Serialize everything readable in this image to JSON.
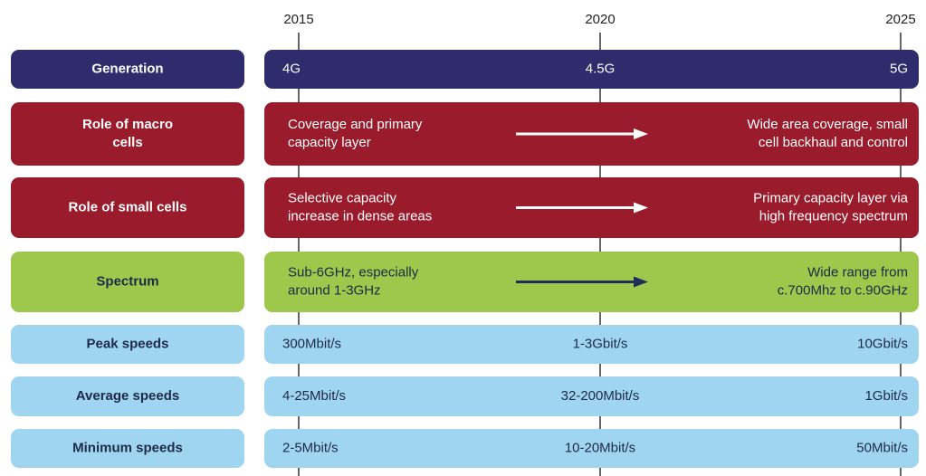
{
  "years": [
    "2015",
    "2020",
    "2025"
  ],
  "rows": [
    {
      "label": [
        "Generation"
      ],
      "cells": [
        "4G",
        "4.5G",
        "5G"
      ]
    },
    {
      "label": [
        "Role of macro",
        "cells"
      ],
      "from": [
        "Coverage and primary",
        "capacity layer"
      ],
      "to": [
        "Wide area coverage, small",
        "cell backhaul and control"
      ]
    },
    {
      "label": [
        "Role of small cells"
      ],
      "from": [
        "Selective capacity",
        "increase in dense areas"
      ],
      "to": [
        "Primary capacity layer via",
        "high frequency spectrum"
      ]
    },
    {
      "label": [
        "Spectrum"
      ],
      "from": [
        "Sub-6GHz, especially",
        "around 1-3GHz"
      ],
      "to": [
        "Wide range from",
        "c.700Mhz to c.90GHz"
      ]
    },
    {
      "label": [
        "Peak speeds"
      ],
      "cells": [
        "300Mbit/s",
        "1-3Gbit/s",
        "10Gbit/s"
      ]
    },
    {
      "label": [
        "Average speeds"
      ],
      "cells": [
        "4-25Mbit/s",
        "32-200Mbit/s",
        "1Gbit/s"
      ]
    },
    {
      "label": [
        "Minimum speeds"
      ],
      "cells": [
        "2-5Mbit/s",
        "10-20Mbit/s",
        "50Mbit/s"
      ]
    }
  ]
}
